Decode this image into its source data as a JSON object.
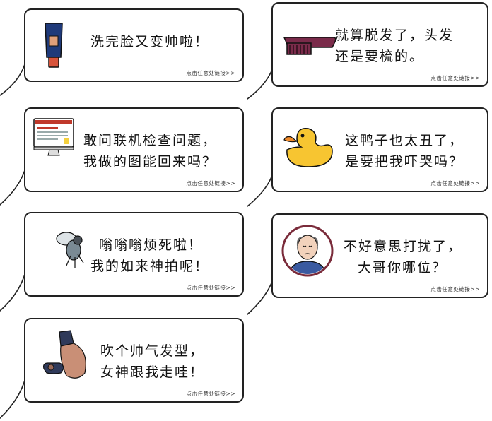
{
  "cards": [
    {
      "line1": "洗完脸又变帅啦！",
      "line2": "",
      "link": "点击任意处链接>>",
      "icon": "face-wash-tube-icon"
    },
    {
      "line1": "就算脱发了，头发",
      "line2": "还是要梳的。",
      "link": "点击任意处链接>>",
      "icon": "comb-icon"
    },
    {
      "line1": "敢问联机检查问题，",
      "line2": "我做的图能回来吗？",
      "link": "点击任意处链接>>",
      "icon": "computer-monitor-icon"
    },
    {
      "line1": "这鸭子也太丑了，",
      "line2": "是要把我吓哭吗？",
      "link": "点击任意处链接>>",
      "icon": "rubber-duck-icon"
    },
    {
      "line1": "嗡嗡嗡烦死啦！",
      "line2": "我的如来神拍呢！",
      "link": "点击任意处链接>>",
      "icon": "fly-icon"
    },
    {
      "line1": "不好意思打扰了，",
      "line2": "大哥你哪位？",
      "link": "点击任意处链接>>",
      "icon": "old-man-avatar-icon"
    },
    {
      "line1": "吹个帅气发型，",
      "line2": "女神跟我走哇！",
      "link": "点击任意处链接>>",
      "icon": "hair-dryer-icon"
    }
  ]
}
